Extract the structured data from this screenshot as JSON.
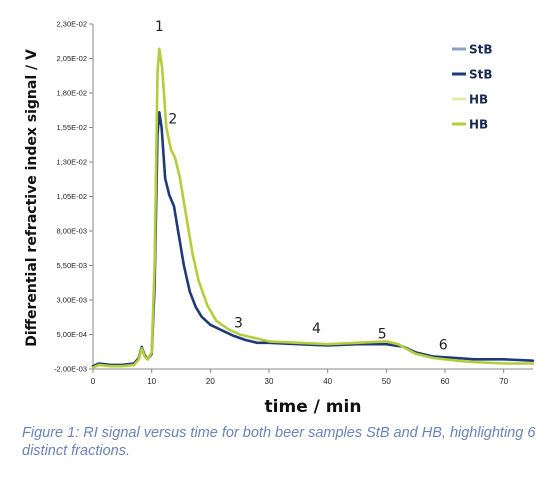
{
  "chart_data": {
    "type": "line",
    "title": "",
    "xlabel": "time / min",
    "ylabel": "Differential refractive index signal / V",
    "xlim": [
      0,
      75
    ],
    "ylim": [
      -0.002,
      0.023
    ],
    "x_ticks": [
      0,
      10,
      20,
      30,
      40,
      50,
      60,
      70
    ],
    "x_tick_labels": [
      "0",
      "10",
      "20",
      "30",
      "40",
      "50",
      "60",
      "70"
    ],
    "y_ticks": [
      -0.002,
      0.0005,
      0.003,
      0.0055,
      0.008,
      0.0105,
      0.013,
      0.0155,
      0.018,
      0.0205,
      0.023
    ],
    "y_tick_labels": [
      "-2,00E-03",
      "5,00E-04",
      "3,00E-03",
      "5,50E-03",
      "8,00E-03",
      "1,05E-02",
      "1,30E-02",
      "1,55E-02",
      "1,80E-02",
      "2,05E-02",
      "2,30E-02"
    ],
    "grid": false,
    "legend_position": "top-right",
    "legend": [
      {
        "label": "StB",
        "color": "#8f9ec4"
      },
      {
        "label": "StB",
        "color": "#1f3a78"
      },
      {
        "label": "HB",
        "color": "#e2ecae"
      },
      {
        "label": "HB",
        "color": "#b3cd3c"
      }
    ],
    "annotations": [
      {
        "text": "1",
        "x": 11.3,
        "y": 0.0225
      },
      {
        "text": "2",
        "x": 13.6,
        "y": 0.0158
      },
      {
        "text": "3",
        "x": 24.8,
        "y": 0.001
      },
      {
        "text": "4",
        "x": 38.1,
        "y": 0.0006
      },
      {
        "text": "5",
        "x": 49.3,
        "y": 0.0002
      },
      {
        "text": "6",
        "x": 59.7,
        "y": -0.0006
      }
    ],
    "series": [
      {
        "name": "StB",
        "color": "#1f3a78",
        "points": [
          [
            0,
            -0.0018
          ],
          [
            1,
            -0.0016
          ],
          [
            3,
            -0.0017
          ],
          [
            5,
            -0.0017
          ],
          [
            7,
            -0.0016
          ],
          [
            7.8,
            -0.0012
          ],
          [
            8.3,
            -0.0004
          ],
          [
            8.8,
            -0.001
          ],
          [
            9.3,
            -0.0013
          ],
          [
            10,
            -0.0009
          ],
          [
            10.5,
            0.004
          ],
          [
            11.0,
            0.015
          ],
          [
            11.3,
            0.0166
          ],
          [
            11.7,
            0.0155
          ],
          [
            12.3,
            0.0118
          ],
          [
            13,
            0.0106
          ],
          [
            13.8,
            0.0098
          ],
          [
            14.5,
            0.008
          ],
          [
            15.5,
            0.0055
          ],
          [
            16.5,
            0.0036
          ],
          [
            17.5,
            0.0025
          ],
          [
            18.5,
            0.0018
          ],
          [
            20,
            0.0012
          ],
          [
            22,
            0.0008
          ],
          [
            24,
            0.0004
          ],
          [
            26,
            0.0001
          ],
          [
            28,
            -0.0001
          ],
          [
            30,
            -0.0001
          ],
          [
            35,
            -0.0002
          ],
          [
            40,
            -0.0003
          ],
          [
            45,
            -0.0002
          ],
          [
            50,
            -0.0002
          ],
          [
            53,
            -0.0004
          ],
          [
            55,
            -0.0008
          ],
          [
            58,
            -0.0011
          ],
          [
            62,
            -0.0012
          ],
          [
            65,
            -0.0013
          ],
          [
            70,
            -0.0013
          ],
          [
            75,
            -0.0014
          ]
        ]
      },
      {
        "name": "HB",
        "color": "#b3cd3c",
        "points": [
          [
            0,
            -0.0019
          ],
          [
            1,
            -0.0017
          ],
          [
            3,
            -0.0018
          ],
          [
            5,
            -0.0018
          ],
          [
            7,
            -0.0017
          ],
          [
            7.8,
            -0.0013
          ],
          [
            8.3,
            -0.0005
          ],
          [
            8.8,
            -0.0011
          ],
          [
            9.3,
            -0.0013
          ],
          [
            10,
            -0.0008
          ],
          [
            10.5,
            0.0055
          ],
          [
            11.0,
            0.0195
          ],
          [
            11.3,
            0.0212
          ],
          [
            11.8,
            0.0198
          ],
          [
            12.5,
            0.0155
          ],
          [
            13.3,
            0.0139
          ],
          [
            14,
            0.0133
          ],
          [
            14.8,
            0.0119
          ],
          [
            15.8,
            0.0093
          ],
          [
            17,
            0.0063
          ],
          [
            18,
            0.0044
          ],
          [
            19.5,
            0.0026
          ],
          [
            21,
            0.0015
          ],
          [
            23,
            0.0009
          ],
          [
            25,
            0.0005
          ],
          [
            28,
            0.0002
          ],
          [
            30,
            0.0
          ],
          [
            35,
            -0.0001
          ],
          [
            40,
            -0.0002
          ],
          [
            45,
            -0.0001
          ],
          [
            50,
            0.0
          ],
          [
            52,
            -0.0002
          ],
          [
            55,
            -0.0009
          ],
          [
            58,
            -0.0012
          ],
          [
            62,
            -0.0014
          ],
          [
            65,
            -0.0015
          ],
          [
            70,
            -0.0016
          ],
          [
            75,
            -0.0016
          ]
        ]
      }
    ]
  },
  "caption": "Figure 1: RI signal versus time for both beer samples StB and HB, highlighting 6 distinct fractions."
}
